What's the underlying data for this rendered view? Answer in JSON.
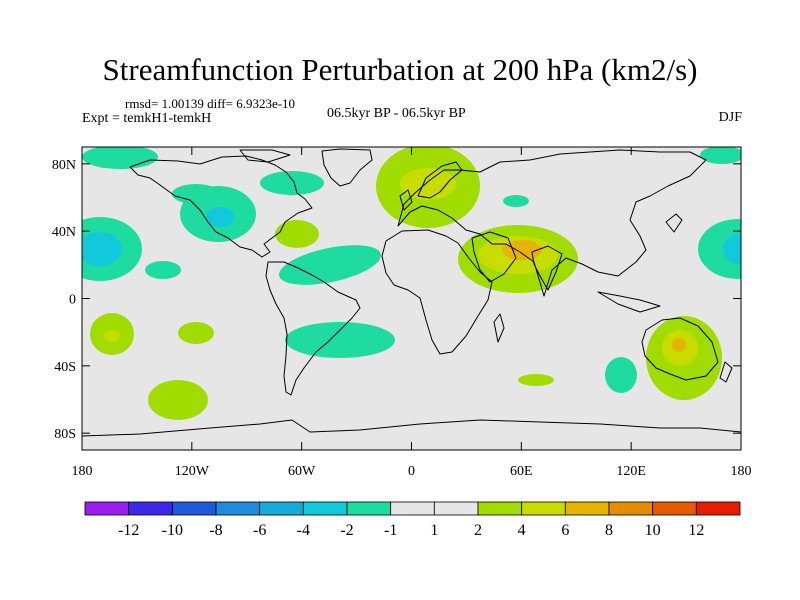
{
  "chart_data": {
    "type": "heatmap",
    "title": "Streamfunction Perturbation at 200 hPa (km2/s)",
    "stats_text": "rmsd= 1.00139  diff= 6.9323e-10",
    "experiment_text": "Expt = temkH1-temkH",
    "period_text": "06.5kyr BP - 06.5kyr BP",
    "season_text": "DJF",
    "x_axis": {
      "range": [
        -180,
        180
      ],
      "tick_values": [
        -180,
        -120,
        -60,
        0,
        60,
        120,
        180
      ],
      "tick_labels": [
        "180",
        "120W",
        "60W",
        "0",
        "60E",
        "120E",
        "180"
      ]
    },
    "y_axis": {
      "range": [
        -90,
        90
      ],
      "tick_values": [
        80,
        40,
        0,
        -40,
        -80
      ],
      "tick_labels": [
        "80N",
        "40N",
        "0",
        "40S",
        "80S"
      ]
    },
    "colorbar": {
      "labels": [
        "-12",
        "-10",
        "-8",
        "-6",
        "-4",
        "-2",
        "-1",
        "1",
        "2",
        "4",
        "6",
        "8",
        "10",
        "12"
      ],
      "colors": [
        "#9b1ef0",
        "#3c28e6",
        "#1e5adc",
        "#1e8cdc",
        "#14aadc",
        "#14c8dc",
        "#1edca0",
        "#e6e6e6",
        "#a0dc00",
        "#c8dc00",
        "#e6b400",
        "#e68c00",
        "#e65a00",
        "#e61e00"
      ]
    },
    "features": [
      {
        "name": "north-pacific-low",
        "lon": -135,
        "lat": 25,
        "category": "-2",
        "color": "#14c8dc"
      },
      {
        "name": "north-america-low",
        "lon": -103,
        "lat": 42,
        "category": "-2",
        "color": "#14c8dc"
      },
      {
        "name": "europe-high",
        "lon": 10,
        "lat": 63,
        "category": "2",
        "color": "#c8dc00"
      },
      {
        "name": "arabia-high",
        "lon": 63,
        "lat": 27,
        "category": "4",
        "color": "#e6b400"
      },
      {
        "name": "north-atlantic-low",
        "lon": -40,
        "lat": 15,
        "category": "-1",
        "color": "#1edca0"
      },
      {
        "name": "australia-high",
        "lon": 150,
        "lat": -30,
        "category": "4",
        "color": "#e6b400"
      },
      {
        "name": "south-pacific-high",
        "lon": -165,
        "lat": -20,
        "category": "2",
        "color": "#c8dc00"
      },
      {
        "name": "south-america-low",
        "lon": -45,
        "lat": -22,
        "category": "-1",
        "color": "#1edca0"
      },
      {
        "name": "west-pacific-low",
        "lon": 170,
        "lat": 25,
        "category": "-2",
        "color": "#14c8dc"
      },
      {
        "name": "south-atlantic-high",
        "lon": -120,
        "lat": -50,
        "category": "1",
        "color": "#a0dc00"
      }
    ]
  }
}
